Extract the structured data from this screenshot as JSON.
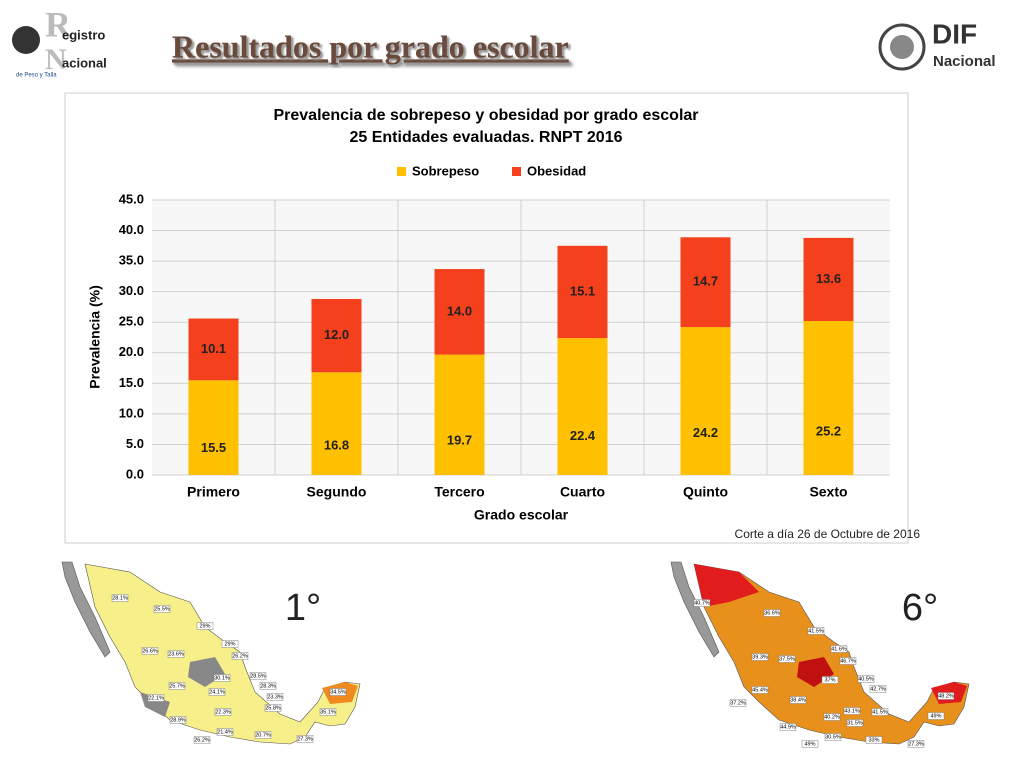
{
  "header": {
    "title": "Resultados por grado escolar",
    "logo_left": [
      "R",
      "egistro",
      "N",
      "acional",
      "de Peso y Talla"
    ],
    "logo_right": [
      "DIF",
      "Nacional"
    ]
  },
  "chart_data": {
    "type": "bar",
    "stacked": true,
    "title": "Prevalencia de sobrepeso y obesidad por grado escolar",
    "subtitle": "25 Entidades evaluadas. RNPT 2016",
    "x_label": "Grado escolar",
    "y_label": "Prevalencia (%)",
    "categories": [
      "Primero",
      "Segundo",
      "Tercero",
      "Cuarto",
      "Quinto",
      "Sexto"
    ],
    "series": [
      {
        "name": "Sobrepeso",
        "color": "#ffc000",
        "values": [
          15.5,
          16.8,
          19.7,
          22.4,
          24.2,
          25.2
        ]
      },
      {
        "name": "Obesidad",
        "color": "#f4401c",
        "values": [
          10.1,
          12.0,
          14.0,
          15.1,
          14.7,
          13.6
        ],
        "value_labels": [
          "10.1",
          "12.0",
          "14.0",
          "15.1",
          "14.7",
          "13.6"
        ]
      }
    ],
    "ylim": [
      0,
      45
    ],
    "yticks": [
      {
        "value": 0,
        "label": "0.0"
      },
      {
        "value": 5,
        "label": "5.0"
      },
      {
        "value": 10,
        "label": "10.0"
      },
      {
        "value": 15,
        "label": "15.0"
      },
      {
        "value": 20,
        "label": "20.0"
      },
      {
        "value": 25,
        "label": "25.0"
      },
      {
        "value": 30,
        "label": "30.0"
      },
      {
        "value": 35,
        "label": "35.0"
      },
      {
        "value": 40,
        "label": "40.0"
      },
      {
        "value": 45,
        "label": "45.0"
      }
    ],
    "grid": true,
    "legend": "top",
    "note": "Corte a día 26 de Octubre de 2016"
  },
  "maps": [
    {
      "label": "1°",
      "labels": [
        "28.1%",
        "25.5%",
        "29%",
        "26.6%",
        "23.6%",
        "29%",
        "26.2%",
        "30.1%",
        "28.5%",
        "25.7%",
        "24.1%",
        "28.3%",
        "22.1%",
        "23.3%",
        "34.5%",
        "28.9%",
        "22.3%",
        "25.8%",
        "35.1%",
        "26.2%",
        "21.4%",
        "20.7%",
        "27.3%"
      ]
    },
    {
      "label": "6°",
      "labels": [
        "40.7%",
        "36.6%",
        "41.5%",
        "41.6%",
        "46.7%",
        "39.3%",
        "37.5%",
        "37%",
        "40.5%",
        "42.7%",
        "45.4%",
        "48.2%",
        "37.2%",
        "38.4%",
        "41.5%",
        "43.1%",
        "49%",
        "44.9%",
        "40.2%",
        "31.5%",
        "49%",
        "30.5%",
        "33%",
        "27.3%"
      ]
    }
  ]
}
